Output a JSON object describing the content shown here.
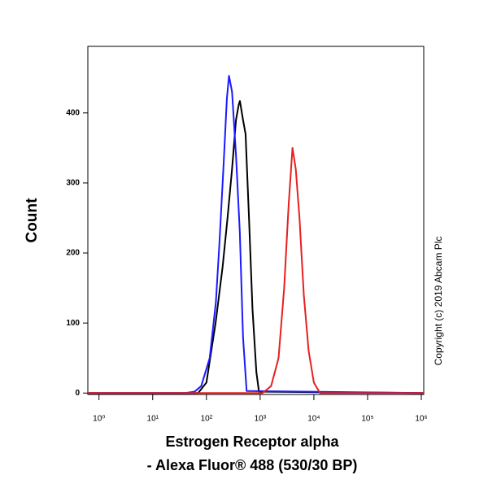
{
  "chart_data": {
    "type": "line",
    "xlabel": [
      "Estrogen Receptor alpha",
      "- Alexa Fluor® 488 (530/30 BP)"
    ],
    "ylabel": "Count",
    "annotation": "Copyright (c) 2019 Abcam Plc",
    "xscale": "log",
    "xlim": [
      0.62,
      1110000
    ],
    "xticks": [
      {
        "value": 1,
        "label": "10⁰"
      },
      {
        "value": 10,
        "label": "10¹"
      },
      {
        "value": 100,
        "label": "10²"
      },
      {
        "value": 1000,
        "label": "10³"
      },
      {
        "value": 10000,
        "label": "10⁴"
      },
      {
        "value": 100000,
        "label": "10⁵"
      },
      {
        "value": 1000000,
        "label": "10⁶"
      }
    ],
    "ylim": [
      -2,
      495
    ],
    "yticks": [
      0,
      100,
      200,
      300,
      400
    ],
    "series": [
      {
        "color": "#000000",
        "x": [
          0.62,
          70,
          100,
          148,
          200,
          247,
          300,
          355,
          400,
          420,
          480,
          535,
          620,
          720,
          850,
          950,
          1110000
        ],
        "values": [
          0,
          0,
          15,
          100,
          180,
          250,
          320,
          390,
          412,
          417,
          390,
          370,
          250,
          120,
          30,
          2,
          0
        ]
      },
      {
        "color": "#1a1aff",
        "x": [
          0.62,
          40,
          60,
          80,
          115,
          150,
          174,
          210,
          240,
          263,
          300,
          355,
          418,
          480,
          560,
          1110000
        ],
        "values": [
          0,
          0,
          2,
          10,
          50,
          130,
          212,
          330,
          420,
          453,
          430,
          340,
          230,
          80,
          3,
          0
        ]
      },
      {
        "color": "#e62020",
        "x": [
          0.62,
          1100,
          1600,
          2200,
          2800,
          3400,
          4000,
          4600,
          5400,
          6500,
          8000,
          10000,
          13000,
          1110000
        ],
        "values": [
          0,
          0,
          10,
          50,
          150,
          270,
          350,
          320,
          250,
          140,
          60,
          15,
          0,
          0
        ]
      }
    ]
  }
}
